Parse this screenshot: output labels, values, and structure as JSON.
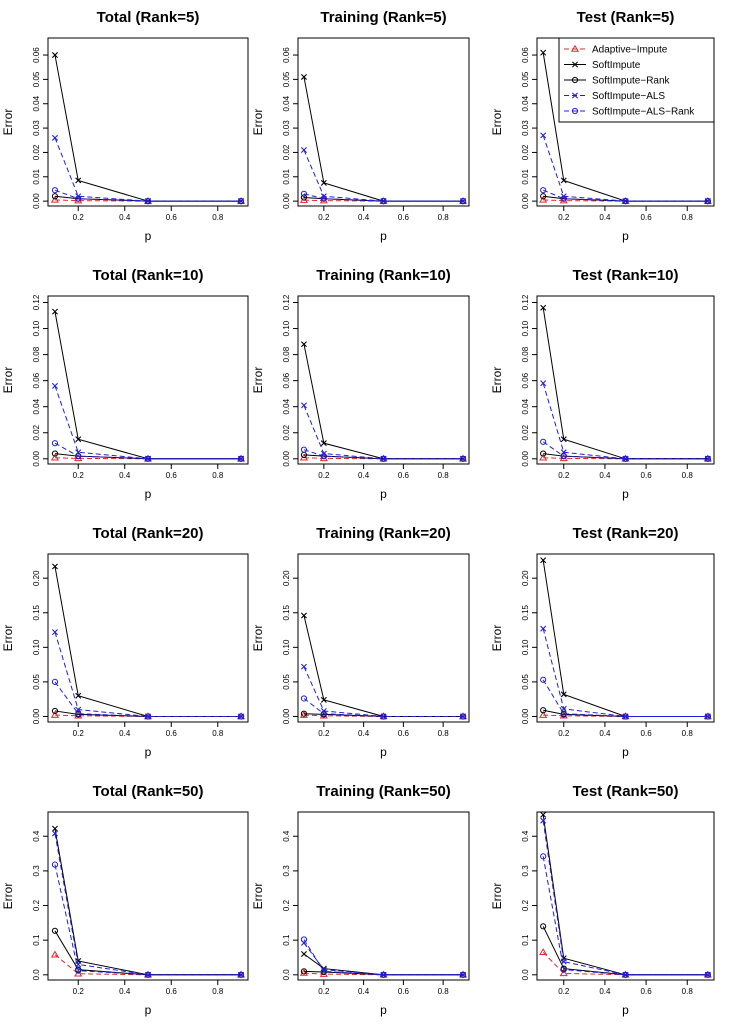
{
  "chart_data": [
    {
      "type": "line",
      "title": "Total (Rank=5)",
      "xlabel": "p",
      "ylabel": "Error",
      "x": [
        0.1,
        0.2,
        0.5,
        0.9
      ],
      "xlim": [
        0.07,
        0.93
      ],
      "xticks": [
        0.2,
        0.4,
        0.6,
        0.8
      ],
      "ylim": [
        -0.002,
        0.067
      ],
      "yticks": [
        0.0,
        0.01,
        0.02,
        0.03,
        0.04,
        0.05,
        0.06
      ],
      "ytick_labels": [
        "0.00",
        "0.01",
        "0.02",
        "0.03",
        "0.04",
        "0.05",
        "0.06"
      ],
      "series": [
        {
          "name": "Adaptive−Impute",
          "values": [
            0.0005,
            0.0002,
            0,
            0
          ]
        },
        {
          "name": "SoftImpute",
          "values": [
            0.06,
            0.0085,
            0,
            0
          ]
        },
        {
          "name": "SoftImpute−Rank",
          "values": [
            0.002,
            0.001,
            0,
            0
          ]
        },
        {
          "name": "SoftImpute−ALS",
          "values": [
            0.026,
            0.002,
            0,
            0
          ]
        },
        {
          "name": "SoftImpute−ALS−Rank",
          "values": [
            0.0045,
            0.001,
            0,
            0
          ]
        }
      ]
    },
    {
      "type": "line",
      "title": "Training (Rank=5)",
      "xlabel": "p",
      "ylabel": "Error",
      "x": [
        0.1,
        0.2,
        0.5,
        0.9
      ],
      "xlim": [
        0.07,
        0.93
      ],
      "xticks": [
        0.2,
        0.4,
        0.6,
        0.8
      ],
      "ylim": [
        -0.002,
        0.067
      ],
      "yticks": [
        0.0,
        0.01,
        0.02,
        0.03,
        0.04,
        0.05,
        0.06
      ],
      "ytick_labels": [
        "0.00",
        "0.01",
        "0.02",
        "0.03",
        "0.04",
        "0.05",
        "0.06"
      ],
      "series": [
        {
          "name": "Adaptive−Impute",
          "values": [
            0.0004,
            0.0002,
            0,
            0
          ]
        },
        {
          "name": "SoftImpute",
          "values": [
            0.051,
            0.0075,
            0,
            0
          ]
        },
        {
          "name": "SoftImpute−Rank",
          "values": [
            0.0015,
            0.001,
            0,
            0
          ]
        },
        {
          "name": "SoftImpute−ALS",
          "values": [
            0.021,
            0.002,
            0,
            0
          ]
        },
        {
          "name": "SoftImpute−ALS−Rank",
          "values": [
            0.003,
            0.001,
            0,
            0
          ]
        }
      ]
    },
    {
      "type": "line",
      "title": "Test (Rank=5)",
      "xlabel": "p",
      "ylabel": "Error",
      "x": [
        0.1,
        0.2,
        0.5,
        0.9
      ],
      "xlim": [
        0.07,
        0.93
      ],
      "xticks": [
        0.2,
        0.4,
        0.6,
        0.8
      ],
      "ylim": [
        -0.002,
        0.067
      ],
      "yticks": [
        0.0,
        0.01,
        0.02,
        0.03,
        0.04,
        0.05,
        0.06
      ],
      "ytick_labels": [
        "0.00",
        "0.01",
        "0.02",
        "0.03",
        "0.04",
        "0.05",
        "0.06"
      ],
      "legend": "top-right",
      "series": [
        {
          "name": "Adaptive−Impute",
          "values": [
            0.0005,
            0.0002,
            0,
            0
          ]
        },
        {
          "name": "SoftImpute",
          "values": [
            0.061,
            0.0085,
            0,
            0
          ]
        },
        {
          "name": "SoftImpute−Rank",
          "values": [
            0.002,
            0.001,
            0,
            0
          ]
        },
        {
          "name": "SoftImpute−ALS",
          "values": [
            0.027,
            0.002,
            0,
            0
          ]
        },
        {
          "name": "SoftImpute−ALS−Rank",
          "values": [
            0.0045,
            0.001,
            0,
            0
          ]
        }
      ]
    },
    {
      "type": "line",
      "title": "Total (Rank=10)",
      "xlabel": "p",
      "ylabel": "Error",
      "x": [
        0.1,
        0.2,
        0.5,
        0.9
      ],
      "xlim": [
        0.07,
        0.93
      ],
      "xticks": [
        0.2,
        0.4,
        0.6,
        0.8
      ],
      "ylim": [
        -0.004,
        0.125
      ],
      "yticks": [
        0.0,
        0.02,
        0.04,
        0.06,
        0.08,
        0.1,
        0.12
      ],
      "ytick_labels": [
        "0.00",
        "0.02",
        "0.04",
        "0.06",
        "0.08",
        "0.10",
        "0.12"
      ],
      "series": [
        {
          "name": "Adaptive−Impute",
          "values": [
            0.0008,
            0.0003,
            0,
            0
          ]
        },
        {
          "name": "SoftImpute",
          "values": [
            0.113,
            0.015,
            0,
            0
          ]
        },
        {
          "name": "SoftImpute−Rank",
          "values": [
            0.004,
            0.002,
            0,
            0
          ]
        },
        {
          "name": "SoftImpute−ALS",
          "values": [
            0.056,
            0.005,
            0,
            0
          ]
        },
        {
          "name": "SoftImpute−ALS−Rank",
          "values": [
            0.012,
            0.002,
            0,
            0
          ]
        }
      ]
    },
    {
      "type": "line",
      "title": "Training (Rank=10)",
      "xlabel": "p",
      "ylabel": "Error",
      "x": [
        0.1,
        0.2,
        0.5,
        0.9
      ],
      "xlim": [
        0.07,
        0.93
      ],
      "xticks": [
        0.2,
        0.4,
        0.6,
        0.8
      ],
      "ylim": [
        -0.004,
        0.125
      ],
      "yticks": [
        0.0,
        0.02,
        0.04,
        0.06,
        0.08,
        0.1,
        0.12
      ],
      "ytick_labels": [
        "0.00",
        "0.02",
        "0.04",
        "0.06",
        "0.08",
        "0.10",
        "0.12"
      ],
      "series": [
        {
          "name": "Adaptive−Impute",
          "values": [
            0.0008,
            0.0003,
            0,
            0
          ]
        },
        {
          "name": "SoftImpute",
          "values": [
            0.088,
            0.012,
            0,
            0
          ]
        },
        {
          "name": "SoftImpute−Rank",
          "values": [
            0.003,
            0.002,
            0,
            0
          ]
        },
        {
          "name": "SoftImpute−ALS",
          "values": [
            0.041,
            0.004,
            0,
            0
          ]
        },
        {
          "name": "SoftImpute−ALS−Rank",
          "values": [
            0.007,
            0.002,
            0,
            0
          ]
        }
      ]
    },
    {
      "type": "line",
      "title": "Test (Rank=10)",
      "xlabel": "p",
      "ylabel": "Error",
      "x": [
        0.1,
        0.2,
        0.5,
        0.9
      ],
      "xlim": [
        0.07,
        0.93
      ],
      "xticks": [
        0.2,
        0.4,
        0.6,
        0.8
      ],
      "ylim": [
        -0.004,
        0.125
      ],
      "yticks": [
        0.0,
        0.02,
        0.04,
        0.06,
        0.08,
        0.1,
        0.12
      ],
      "ytick_labels": [
        "0.00",
        "0.02",
        "0.04",
        "0.06",
        "0.08",
        "0.10",
        "0.12"
      ],
      "series": [
        {
          "name": "Adaptive−Impute",
          "values": [
            0.0008,
            0.0003,
            0,
            0
          ]
        },
        {
          "name": "SoftImpute",
          "values": [
            0.116,
            0.015,
            0,
            0
          ]
        },
        {
          "name": "SoftImpute−Rank",
          "values": [
            0.004,
            0.002,
            0,
            0
          ]
        },
        {
          "name": "SoftImpute−ALS",
          "values": [
            0.058,
            0.005,
            0,
            0
          ]
        },
        {
          "name": "SoftImpute−ALS−Rank",
          "values": [
            0.013,
            0.002,
            0,
            0
          ]
        }
      ]
    },
    {
      "type": "line",
      "title": "Total (Rank=20)",
      "xlabel": "p",
      "ylabel": "Error",
      "x": [
        0.1,
        0.2,
        0.5,
        0.9
      ],
      "xlim": [
        0.07,
        0.93
      ],
      "xticks": [
        0.2,
        0.4,
        0.6,
        0.8
      ],
      "ylim": [
        -0.008,
        0.235
      ],
      "yticks": [
        0.0,
        0.05,
        0.1,
        0.15,
        0.2
      ],
      "ytick_labels": [
        "0.00",
        "0.05",
        "0.10",
        "0.15",
        "0.20"
      ],
      "series": [
        {
          "name": "Adaptive−Impute",
          "values": [
            0.002,
            0.001,
            0,
            0
          ]
        },
        {
          "name": "SoftImpute",
          "values": [
            0.217,
            0.03,
            0,
            0
          ]
        },
        {
          "name": "SoftImpute−Rank",
          "values": [
            0.008,
            0.003,
            0,
            0
          ]
        },
        {
          "name": "SoftImpute−ALS",
          "values": [
            0.122,
            0.01,
            0,
            0
          ]
        },
        {
          "name": "SoftImpute−ALS−Rank",
          "values": [
            0.05,
            0.004,
            0,
            0
          ]
        }
      ]
    },
    {
      "type": "line",
      "title": "Training (Rank=20)",
      "xlabel": "p",
      "ylabel": "Error",
      "x": [
        0.1,
        0.2,
        0.5,
        0.9
      ],
      "xlim": [
        0.07,
        0.93
      ],
      "xticks": [
        0.2,
        0.4,
        0.6,
        0.8
      ],
      "ylim": [
        -0.008,
        0.235
      ],
      "yticks": [
        0.0,
        0.05,
        0.1,
        0.15,
        0.2
      ],
      "ytick_labels": [
        "0.00",
        "0.05",
        "0.10",
        "0.15",
        "0.20"
      ],
      "series": [
        {
          "name": "Adaptive−Impute",
          "values": [
            0.002,
            0.001,
            0,
            0
          ]
        },
        {
          "name": "SoftImpute",
          "values": [
            0.146,
            0.024,
            0,
            0
          ]
        },
        {
          "name": "SoftImpute−Rank",
          "values": [
            0.004,
            0.003,
            0,
            0
          ]
        },
        {
          "name": "SoftImpute−ALS",
          "values": [
            0.072,
            0.008,
            0,
            0
          ]
        },
        {
          "name": "SoftImpute−ALS−Rank",
          "values": [
            0.026,
            0.004,
            0,
            0
          ]
        }
      ]
    },
    {
      "type": "line",
      "title": "Test (Rank=20)",
      "xlabel": "p",
      "ylabel": "Error",
      "x": [
        0.1,
        0.2,
        0.5,
        0.9
      ],
      "xlim": [
        0.07,
        0.93
      ],
      "xticks": [
        0.2,
        0.4,
        0.6,
        0.8
      ],
      "ylim": [
        -0.008,
        0.235
      ],
      "yticks": [
        0.0,
        0.05,
        0.1,
        0.15,
        0.2
      ],
      "ytick_labels": [
        "0.00",
        "0.05",
        "0.10",
        "0.15",
        "0.20"
      ],
      "series": [
        {
          "name": "Adaptive−Impute",
          "values": [
            0.002,
            0.001,
            0,
            0
          ]
        },
        {
          "name": "SoftImpute",
          "values": [
            0.226,
            0.032,
            0,
            0
          ]
        },
        {
          "name": "SoftImpute−Rank",
          "values": [
            0.009,
            0.003,
            0,
            0
          ]
        },
        {
          "name": "SoftImpute−ALS",
          "values": [
            0.127,
            0.011,
            0,
            0
          ]
        },
        {
          "name": "SoftImpute−ALS−Rank",
          "values": [
            0.053,
            0.004,
            0,
            0
          ]
        }
      ]
    },
    {
      "type": "line",
      "title": "Total (Rank=50)",
      "xlabel": "p",
      "ylabel": "Error",
      "x": [
        0.1,
        0.2,
        0.5,
        0.9
      ],
      "xlim": [
        0.07,
        0.93
      ],
      "xticks": [
        0.2,
        0.4,
        0.6,
        0.8
      ],
      "ylim": [
        -0.015,
        0.47
      ],
      "yticks": [
        0.0,
        0.1,
        0.2,
        0.3,
        0.4
      ],
      "ytick_labels": [
        "0.0",
        "0.1",
        "0.2",
        "0.3",
        "0.4"
      ],
      "series": [
        {
          "name": "Adaptive−Impute",
          "values": [
            0.058,
            0.003,
            0,
            0
          ]
        },
        {
          "name": "SoftImpute",
          "values": [
            0.422,
            0.04,
            0,
            0
          ]
        },
        {
          "name": "SoftImpute−Rank",
          "values": [
            0.127,
            0.015,
            0,
            0
          ]
        },
        {
          "name": "SoftImpute−ALS",
          "values": [
            0.408,
            0.03,
            0,
            0
          ]
        },
        {
          "name": "SoftImpute−ALS−Rank",
          "values": [
            0.318,
            0.012,
            0,
            0
          ]
        }
      ]
    },
    {
      "type": "line",
      "title": "Training (Rank=50)",
      "xlabel": "p",
      "ylabel": "Error",
      "x": [
        0.1,
        0.2,
        0.5,
        0.9
      ],
      "xlim": [
        0.07,
        0.93
      ],
      "xticks": [
        0.2,
        0.4,
        0.6,
        0.8
      ],
      "ylim": [
        -0.015,
        0.47
      ],
      "yticks": [
        0.0,
        0.1,
        0.2,
        0.3,
        0.4
      ],
      "ytick_labels": [
        "0.0",
        "0.1",
        "0.2",
        "0.3",
        "0.4"
      ],
      "series": [
        {
          "name": "Adaptive−Impute",
          "values": [
            0.005,
            0.002,
            0,
            0
          ]
        },
        {
          "name": "SoftImpute",
          "values": [
            0.06,
            0.018,
            0,
            0
          ]
        },
        {
          "name": "SoftImpute−Rank",
          "values": [
            0.01,
            0.008,
            0,
            0
          ]
        },
        {
          "name": "SoftImpute−ALS",
          "values": [
            0.092,
            0.015,
            0,
            0
          ]
        },
        {
          "name": "SoftImpute−ALS−Rank",
          "values": [
            0.102,
            0.01,
            0,
            0
          ]
        }
      ]
    },
    {
      "type": "line",
      "title": "Test (Rank=50)",
      "xlabel": "p",
      "ylabel": "Error",
      "x": [
        0.1,
        0.2,
        0.5,
        0.9
      ],
      "xlim": [
        0.07,
        0.93
      ],
      "xticks": [
        0.2,
        0.4,
        0.6,
        0.8
      ],
      "ylim": [
        -0.015,
        0.47
      ],
      "yticks": [
        0.0,
        0.1,
        0.2,
        0.3,
        0.4
      ],
      "ytick_labels": [
        "0.0",
        "0.1",
        "0.2",
        "0.3",
        "0.4"
      ],
      "series": [
        {
          "name": "Adaptive−Impute",
          "values": [
            0.065,
            0.004,
            0,
            0
          ]
        },
        {
          "name": "SoftImpute",
          "values": [
            0.462,
            0.048,
            0,
            0
          ]
        },
        {
          "name": "SoftImpute−Rank",
          "values": [
            0.14,
            0.018,
            0,
            0
          ]
        },
        {
          "name": "SoftImpute−ALS",
          "values": [
            0.445,
            0.038,
            0,
            0
          ]
        },
        {
          "name": "SoftImpute−ALS−Rank",
          "values": [
            0.342,
            0.015,
            0,
            0
          ]
        }
      ]
    }
  ],
  "series_styles": [
    {
      "name": "Adaptive−Impute",
      "color": "#e8262b",
      "dash": true,
      "marker": "triangle"
    },
    {
      "name": "SoftImpute",
      "color": "#000000",
      "dash": false,
      "marker": "cross"
    },
    {
      "name": "SoftImpute−Rank",
      "color": "#000000",
      "dash": false,
      "marker": "circle"
    },
    {
      "name": "SoftImpute−ALS",
      "color": "#1f1fdc",
      "dash": true,
      "marker": "cross"
    },
    {
      "name": "SoftImpute−ALS−Rank",
      "color": "#1f1fdc",
      "dash": true,
      "marker": "circle"
    }
  ]
}
